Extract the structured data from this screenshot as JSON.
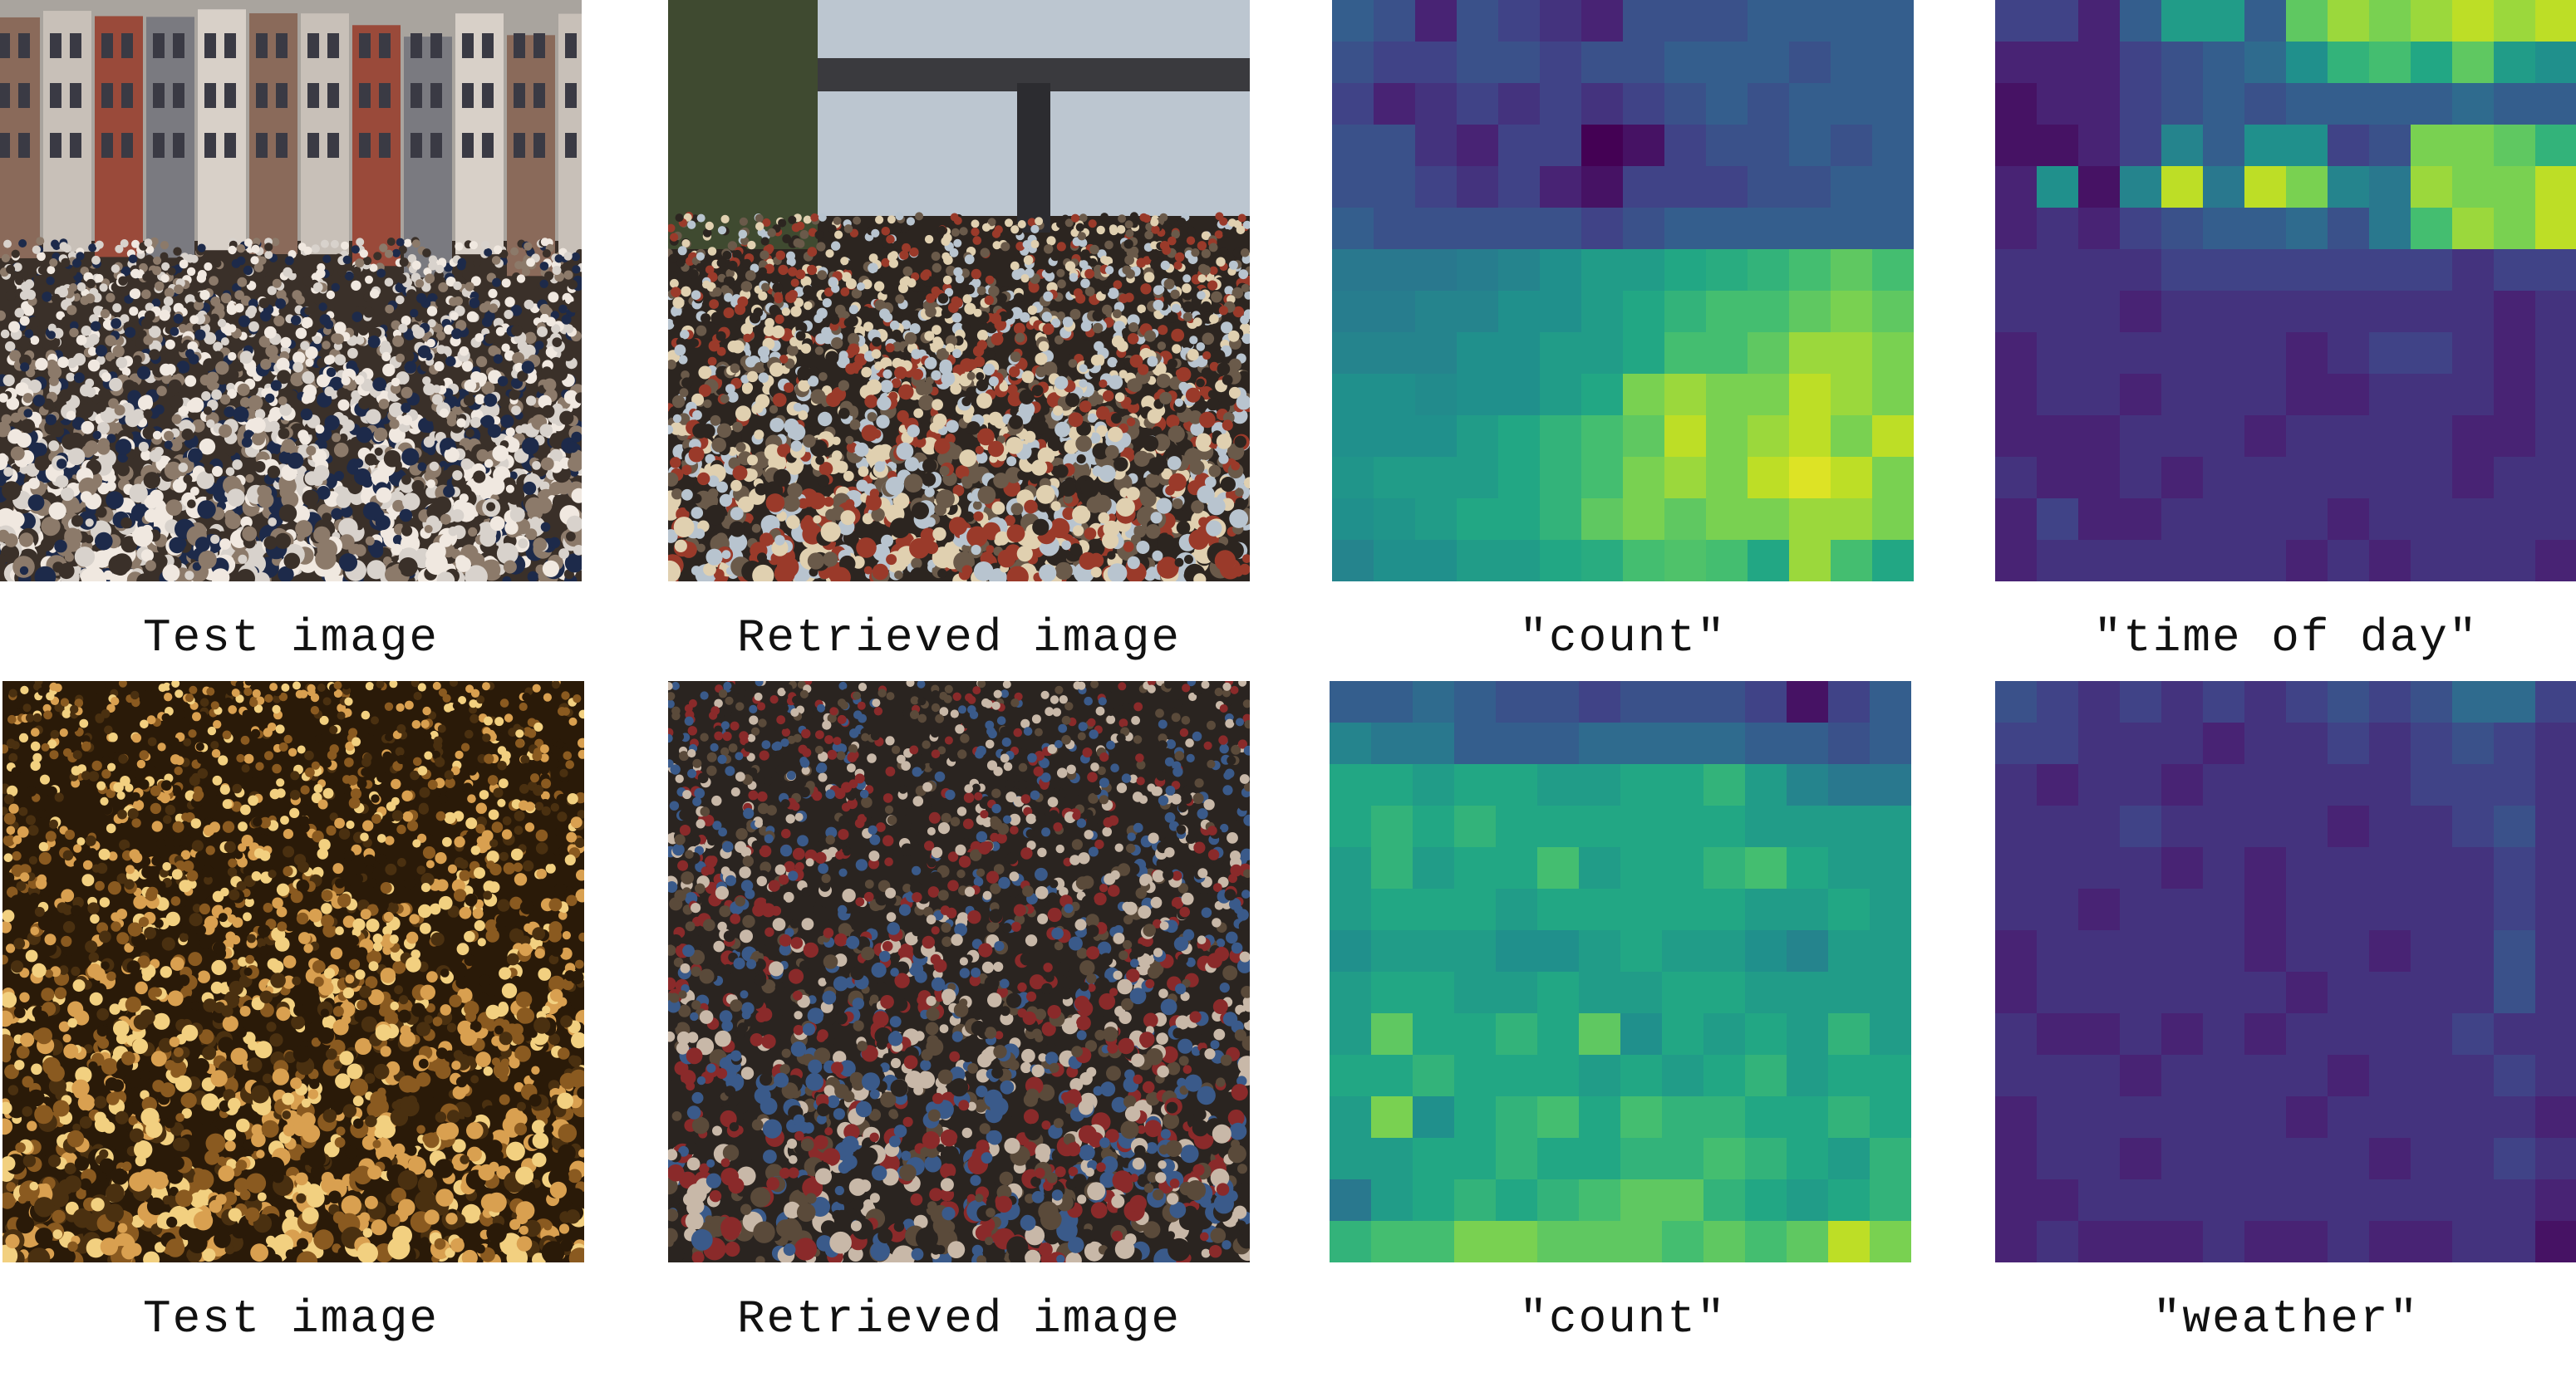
{
  "rows": [
    {
      "captions": [
        "Test image",
        "Retrieved image",
        "\"count\"",
        "\"time of day\""
      ],
      "photos": [
        {
          "scene": "dense-crowd-city-street",
          "palette": [
            "#d8d2cc",
            "#8c7a6a",
            "#3a3029",
            "#f0e8e0",
            "#1d2a4a"
          ]
        },
        {
          "scene": "synthetic-crowd-under-bridge",
          "palette": [
            "#b8c4cf",
            "#6a5a4a",
            "#2c2520",
            "#9a3a2a",
            "#e0d0b0"
          ]
        }
      ],
      "heatmaps": [
        {
          "name": "count",
          "colormap": "viridis",
          "rows": 14,
          "cols": 14,
          "values": [
            [
              0.3,
              0.25,
              0.1,
              0.25,
              0.2,
              0.15,
              0.1,
              0.25,
              0.25,
              0.25,
              0.3,
              0.3,
              0.3,
              0.3
            ],
            [
              0.25,
              0.2,
              0.2,
              0.25,
              0.25,
              0.2,
              0.25,
              0.25,
              0.3,
              0.3,
              0.3,
              0.25,
              0.3,
              0.3
            ],
            [
              0.2,
              0.1,
              0.15,
              0.2,
              0.15,
              0.2,
              0.15,
              0.2,
              0.25,
              0.3,
              0.25,
              0.3,
              0.3,
              0.3
            ],
            [
              0.25,
              0.25,
              0.15,
              0.1,
              0.2,
              0.2,
              0.0,
              0.05,
              0.2,
              0.25,
              0.25,
              0.3,
              0.25,
              0.3
            ],
            [
              0.25,
              0.25,
              0.2,
              0.15,
              0.2,
              0.1,
              0.05,
              0.2,
              0.2,
              0.2,
              0.25,
              0.25,
              0.3,
              0.3
            ],
            [
              0.3,
              0.25,
              0.25,
              0.25,
              0.25,
              0.25,
              0.2,
              0.25,
              0.3,
              0.3,
              0.3,
              0.3,
              0.3,
              0.3
            ],
            [
              0.4,
              0.4,
              0.4,
              0.42,
              0.45,
              0.5,
              0.55,
              0.55,
              0.6,
              0.62,
              0.65,
              0.7,
              0.75,
              0.7
            ],
            [
              0.42,
              0.42,
              0.45,
              0.45,
              0.5,
              0.5,
              0.55,
              0.6,
              0.65,
              0.7,
              0.7,
              0.75,
              0.8,
              0.75
            ],
            [
              0.45,
              0.45,
              0.45,
              0.5,
              0.5,
              0.55,
              0.55,
              0.6,
              0.7,
              0.7,
              0.75,
              0.85,
              0.85,
              0.8
            ],
            [
              0.5,
              0.5,
              0.48,
              0.5,
              0.5,
              0.55,
              0.6,
              0.8,
              0.85,
              0.8,
              0.8,
              0.9,
              0.85,
              0.8
            ],
            [
              0.5,
              0.5,
              0.5,
              0.55,
              0.6,
              0.65,
              0.7,
              0.75,
              0.9,
              0.8,
              0.85,
              0.9,
              0.8,
              0.9
            ],
            [
              0.52,
              0.55,
              0.55,
              0.55,
              0.6,
              0.65,
              0.7,
              0.8,
              0.85,
              0.8,
              0.9,
              0.95,
              0.9,
              0.8
            ],
            [
              0.5,
              0.52,
              0.55,
              0.6,
              0.6,
              0.65,
              0.75,
              0.8,
              0.75,
              0.8,
              0.8,
              0.85,
              0.85,
              0.8
            ],
            [
              0.45,
              0.5,
              0.5,
              0.55,
              0.55,
              0.6,
              0.62,
              0.7,
              0.72,
              0.7,
              0.6,
              0.85,
              0.7,
              0.6
            ]
          ]
        },
        {
          "name": "time of day",
          "colormap": "viridis",
          "rows": 14,
          "cols": 14,
          "values": [
            [
              0.2,
              0.2,
              0.1,
              0.3,
              0.55,
              0.55,
              0.3,
              0.75,
              0.85,
              0.8,
              0.85,
              0.9,
              0.85,
              0.9
            ],
            [
              0.1,
              0.1,
              0.1,
              0.2,
              0.25,
              0.3,
              0.35,
              0.5,
              0.65,
              0.7,
              0.6,
              0.75,
              0.55,
              0.5
            ],
            [
              0.05,
              0.1,
              0.1,
              0.2,
              0.25,
              0.3,
              0.25,
              0.3,
              0.3,
              0.3,
              0.3,
              0.35,
              0.3,
              0.3
            ],
            [
              0.05,
              0.05,
              0.1,
              0.2,
              0.45,
              0.3,
              0.5,
              0.5,
              0.2,
              0.25,
              0.8,
              0.8,
              0.75,
              0.65
            ],
            [
              0.1,
              0.5,
              0.05,
              0.45,
              0.9,
              0.4,
              0.9,
              0.8,
              0.45,
              0.4,
              0.85,
              0.8,
              0.8,
              0.9
            ],
            [
              0.1,
              0.15,
              0.1,
              0.2,
              0.25,
              0.3,
              0.3,
              0.35,
              0.25,
              0.4,
              0.7,
              0.85,
              0.8,
              0.9
            ],
            [
              0.15,
              0.15,
              0.15,
              0.15,
              0.2,
              0.2,
              0.2,
              0.2,
              0.2,
              0.2,
              0.2,
              0.15,
              0.2,
              0.2
            ],
            [
              0.15,
              0.15,
              0.15,
              0.1,
              0.15,
              0.15,
              0.15,
              0.15,
              0.15,
              0.15,
              0.15,
              0.15,
              0.1,
              0.15
            ],
            [
              0.1,
              0.15,
              0.15,
              0.15,
              0.15,
              0.15,
              0.15,
              0.1,
              0.15,
              0.2,
              0.2,
              0.15,
              0.1,
              0.15
            ],
            [
              0.1,
              0.15,
              0.15,
              0.1,
              0.15,
              0.15,
              0.15,
              0.1,
              0.1,
              0.15,
              0.15,
              0.15,
              0.1,
              0.15
            ],
            [
              0.1,
              0.1,
              0.1,
              0.15,
              0.15,
              0.15,
              0.1,
              0.15,
              0.15,
              0.15,
              0.15,
              0.1,
              0.1,
              0.15
            ],
            [
              0.15,
              0.1,
              0.1,
              0.15,
              0.1,
              0.15,
              0.15,
              0.15,
              0.15,
              0.15,
              0.15,
              0.1,
              0.15,
              0.15
            ],
            [
              0.1,
              0.2,
              0.1,
              0.1,
              0.15,
              0.15,
              0.15,
              0.15,
              0.1,
              0.15,
              0.15,
              0.15,
              0.15,
              0.15
            ],
            [
              0.1,
              0.15,
              0.15,
              0.15,
              0.15,
              0.15,
              0.15,
              0.1,
              0.15,
              0.1,
              0.15,
              0.15,
              0.15,
              0.1
            ]
          ]
        }
      ]
    },
    {
      "captions": [
        "Test image",
        "Retrieved image",
        "\"count\"",
        "\"weather\""
      ],
      "photos": [
        {
          "scene": "dense-crowd-night-warm-light",
          "palette": [
            "#d9a050",
            "#8a5a20",
            "#2a1a08",
            "#f2d080",
            "#4a3010"
          ]
        },
        {
          "scene": "synthetic-crowd-overhead",
          "palette": [
            "#c8b8a8",
            "#5a4a3a",
            "#2a2420",
            "#8a2a2a",
            "#3a5a8a"
          ]
        }
      ],
      "heatmaps": [
        {
          "name": "count",
          "colormap": "viridis",
          "rows": 14,
          "cols": 14,
          "values": [
            [
              0.3,
              0.3,
              0.35,
              0.3,
              0.25,
              0.25,
              0.2,
              0.25,
              0.25,
              0.25,
              0.2,
              0.05,
              0.2,
              0.3
            ],
            [
              0.45,
              0.4,
              0.4,
              0.3,
              0.3,
              0.3,
              0.35,
              0.35,
              0.35,
              0.35,
              0.3,
              0.3,
              0.25,
              0.3
            ],
            [
              0.6,
              0.6,
              0.55,
              0.6,
              0.6,
              0.55,
              0.55,
              0.6,
              0.6,
              0.65,
              0.55,
              0.45,
              0.4,
              0.4
            ],
            [
              0.6,
              0.65,
              0.6,
              0.65,
              0.6,
              0.6,
              0.6,
              0.6,
              0.6,
              0.6,
              0.55,
              0.55,
              0.55,
              0.55
            ],
            [
              0.55,
              0.65,
              0.55,
              0.6,
              0.6,
              0.7,
              0.55,
              0.6,
              0.6,
              0.65,
              0.7,
              0.6,
              0.55,
              0.55
            ],
            [
              0.55,
              0.6,
              0.6,
              0.6,
              0.55,
              0.6,
              0.6,
              0.6,
              0.6,
              0.6,
              0.55,
              0.55,
              0.6,
              0.55
            ],
            [
              0.5,
              0.55,
              0.55,
              0.55,
              0.5,
              0.5,
              0.55,
              0.6,
              0.55,
              0.55,
              0.5,
              0.45,
              0.55,
              0.55
            ],
            [
              0.55,
              0.6,
              0.6,
              0.55,
              0.55,
              0.6,
              0.55,
              0.55,
              0.6,
              0.6,
              0.55,
              0.55,
              0.55,
              0.55
            ],
            [
              0.55,
              0.75,
              0.6,
              0.6,
              0.65,
              0.6,
              0.75,
              0.5,
              0.6,
              0.55,
              0.6,
              0.55,
              0.65,
              0.55
            ],
            [
              0.6,
              0.6,
              0.65,
              0.6,
              0.6,
              0.6,
              0.55,
              0.6,
              0.55,
              0.6,
              0.65,
              0.55,
              0.6,
              0.6
            ],
            [
              0.55,
              0.8,
              0.5,
              0.6,
              0.65,
              0.7,
              0.6,
              0.7,
              0.65,
              0.65,
              0.6,
              0.6,
              0.65,
              0.6
            ],
            [
              0.55,
              0.55,
              0.6,
              0.6,
              0.65,
              0.6,
              0.6,
              0.65,
              0.65,
              0.7,
              0.65,
              0.6,
              0.55,
              0.65
            ],
            [
              0.4,
              0.55,
              0.6,
              0.65,
              0.6,
              0.65,
              0.7,
              0.75,
              0.75,
              0.65,
              0.6,
              0.55,
              0.6,
              0.65
            ],
            [
              0.65,
              0.7,
              0.7,
              0.8,
              0.8,
              0.75,
              0.75,
              0.75,
              0.7,
              0.75,
              0.7,
              0.75,
              0.9,
              0.8
            ]
          ]
        },
        {
          "name": "weather",
          "colormap": "viridis",
          "rows": 14,
          "cols": 14,
          "values": [
            [
              0.25,
              0.2,
              0.15,
              0.2,
              0.15,
              0.2,
              0.15,
              0.2,
              0.25,
              0.2,
              0.25,
              0.35,
              0.35,
              0.2
            ],
            [
              0.2,
              0.2,
              0.15,
              0.15,
              0.15,
              0.1,
              0.15,
              0.15,
              0.2,
              0.15,
              0.2,
              0.25,
              0.2,
              0.15
            ],
            [
              0.15,
              0.1,
              0.15,
              0.15,
              0.1,
              0.15,
              0.15,
              0.15,
              0.15,
              0.15,
              0.2,
              0.2,
              0.2,
              0.15
            ],
            [
              0.15,
              0.15,
              0.15,
              0.2,
              0.15,
              0.15,
              0.15,
              0.15,
              0.1,
              0.15,
              0.15,
              0.2,
              0.25,
              0.15
            ],
            [
              0.15,
              0.15,
              0.15,
              0.15,
              0.1,
              0.15,
              0.1,
              0.15,
              0.15,
              0.15,
              0.15,
              0.15,
              0.2,
              0.15
            ],
            [
              0.15,
              0.15,
              0.1,
              0.15,
              0.15,
              0.15,
              0.1,
              0.15,
              0.15,
              0.15,
              0.15,
              0.15,
              0.2,
              0.15
            ],
            [
              0.1,
              0.15,
              0.15,
              0.15,
              0.15,
              0.15,
              0.1,
              0.15,
              0.15,
              0.1,
              0.15,
              0.15,
              0.25,
              0.15
            ],
            [
              0.1,
              0.15,
              0.15,
              0.15,
              0.15,
              0.15,
              0.15,
              0.1,
              0.15,
              0.15,
              0.15,
              0.15,
              0.25,
              0.15
            ],
            [
              0.15,
              0.1,
              0.1,
              0.15,
              0.1,
              0.15,
              0.1,
              0.15,
              0.15,
              0.15,
              0.15,
              0.2,
              0.15,
              0.15
            ],
            [
              0.15,
              0.15,
              0.15,
              0.1,
              0.15,
              0.15,
              0.15,
              0.15,
              0.1,
              0.15,
              0.15,
              0.15,
              0.2,
              0.15
            ],
            [
              0.1,
              0.15,
              0.15,
              0.15,
              0.15,
              0.15,
              0.15,
              0.1,
              0.15,
              0.15,
              0.15,
              0.15,
              0.15,
              0.1
            ],
            [
              0.1,
              0.15,
              0.15,
              0.1,
              0.15,
              0.15,
              0.15,
              0.15,
              0.15,
              0.1,
              0.15,
              0.15,
              0.2,
              0.15
            ],
            [
              0.1,
              0.1,
              0.15,
              0.15,
              0.15,
              0.15,
              0.15,
              0.15,
              0.15,
              0.15,
              0.15,
              0.15,
              0.15,
              0.1
            ],
            [
              0.1,
              0.15,
              0.1,
              0.1,
              0.1,
              0.15,
              0.1,
              0.1,
              0.15,
              0.1,
              0.1,
              0.15,
              0.15,
              0.05
            ]
          ]
        }
      ]
    }
  ]
}
